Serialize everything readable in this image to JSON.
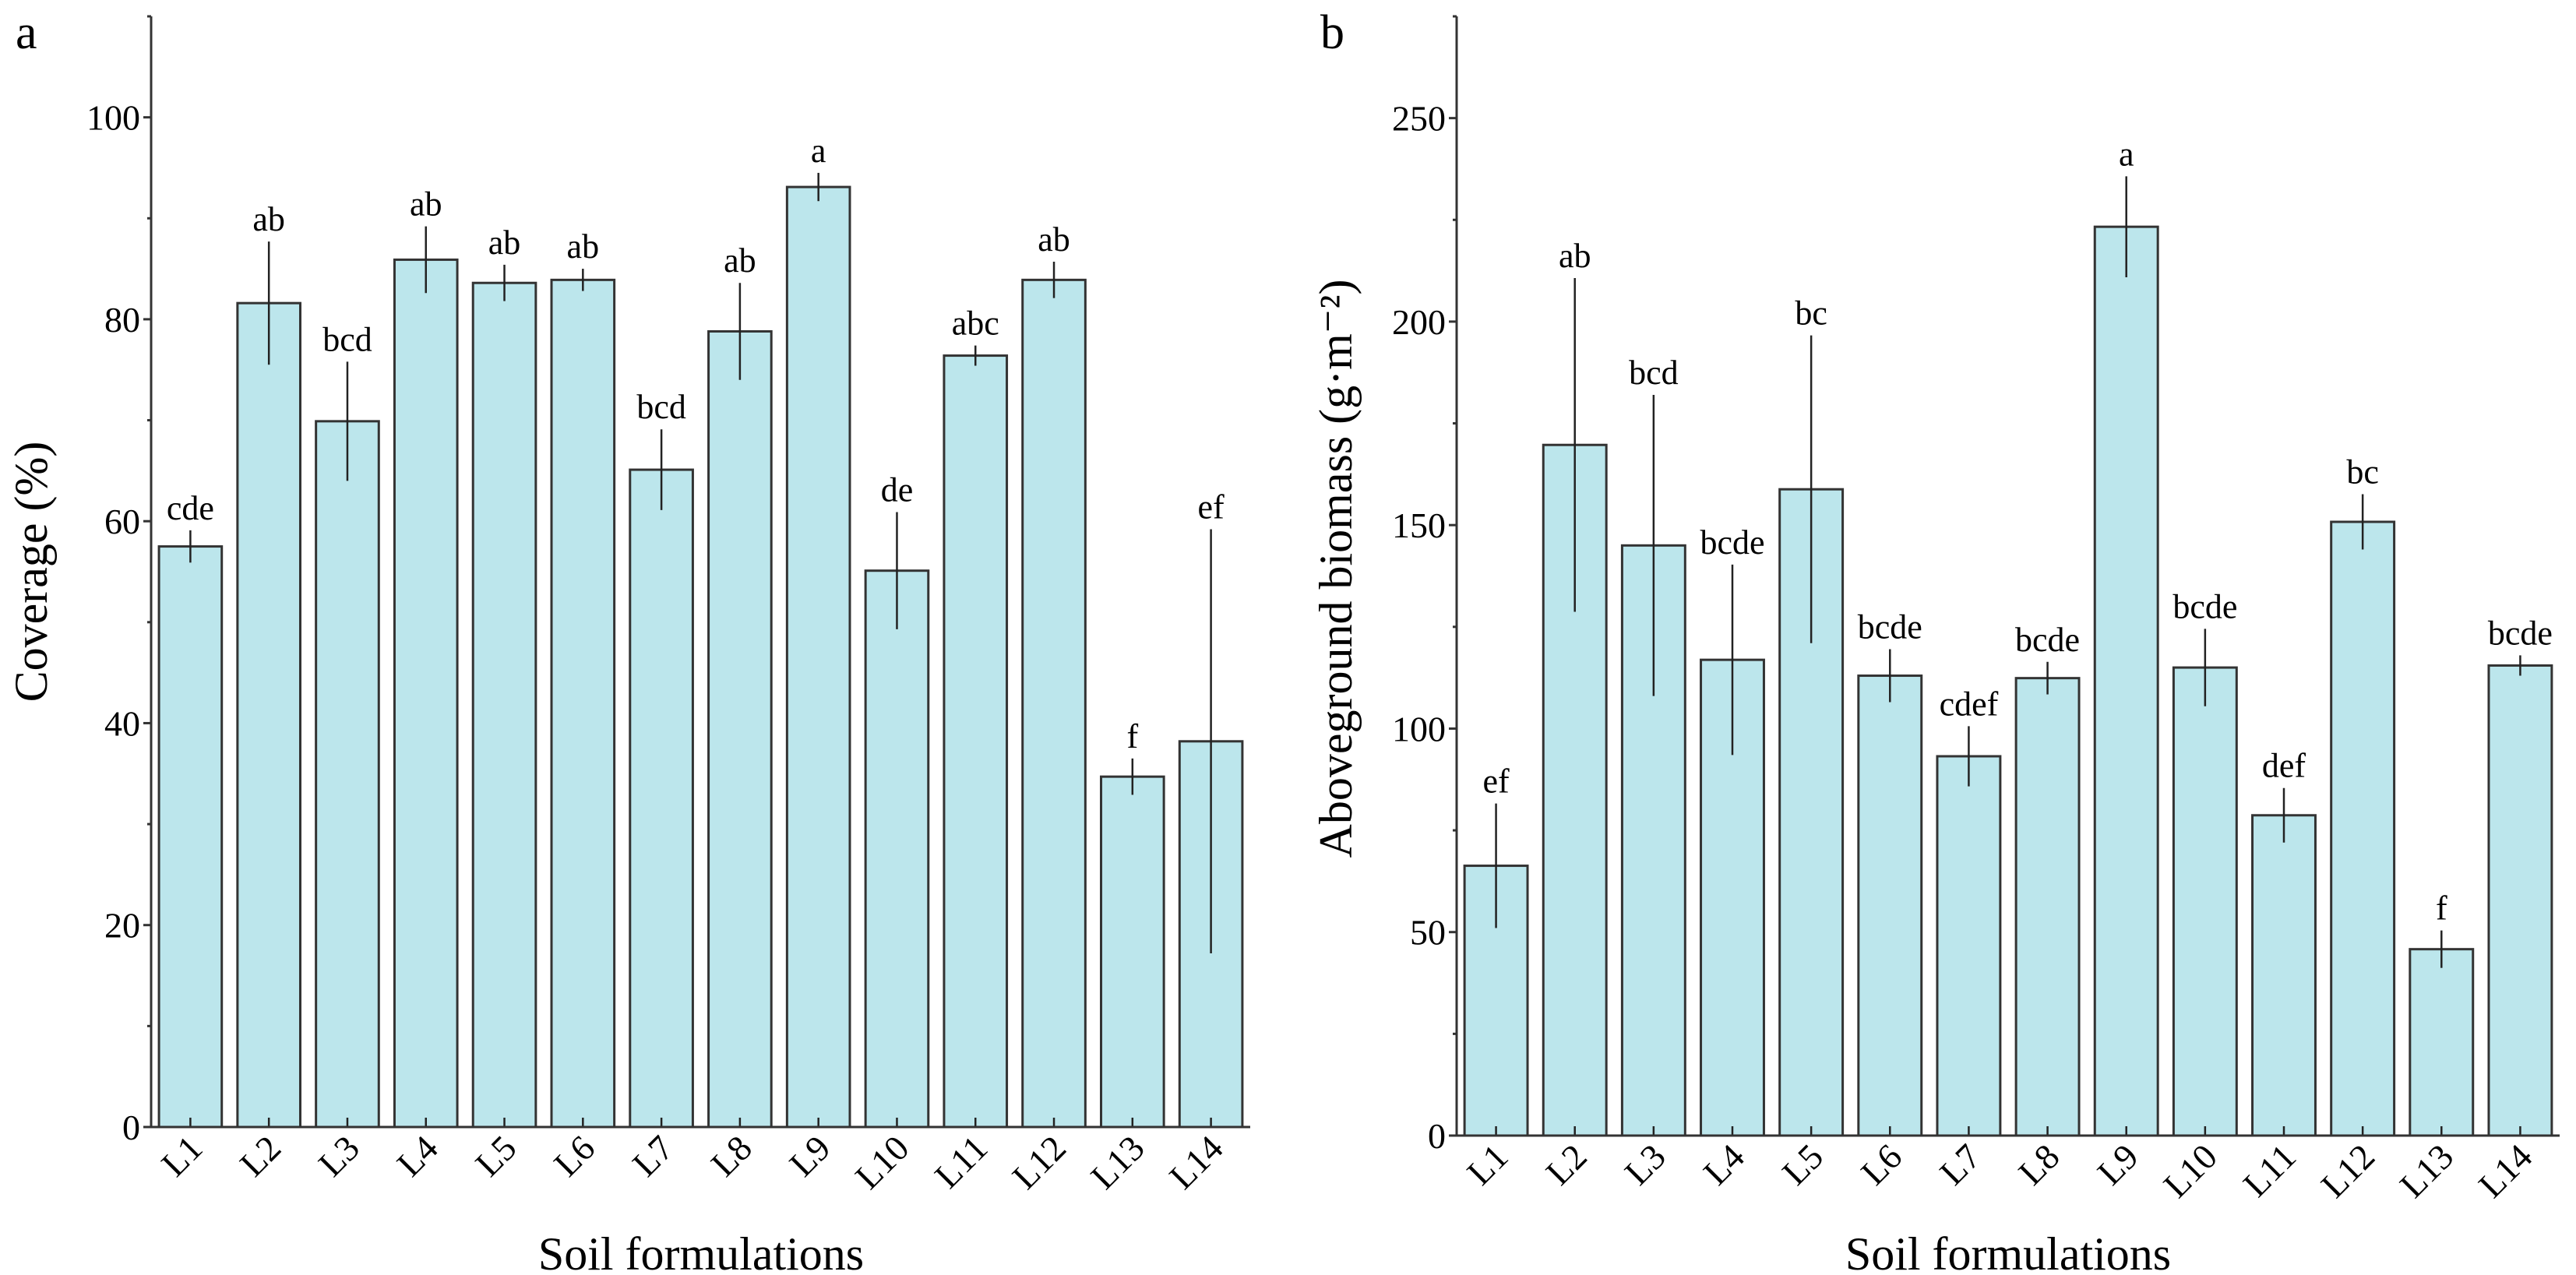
{
  "chart_data": [
    {
      "type": "bar",
      "panel_label": "a",
      "xlabel": "Soil formulations",
      "ylabel": "Coverage (%)",
      "ylim": [
        0,
        110
      ],
      "yticks": [
        0,
        20,
        40,
        60,
        80,
        100
      ],
      "grid": false,
      "bar_color": "#bce6ec",
      "categories": [
        "L1",
        "L2",
        "L3",
        "L4",
        "L5",
        "L6",
        "L7",
        "L8",
        "L9",
        "L10",
        "L11",
        "L12",
        "L13",
        "L14"
      ],
      "values": [
        57.5,
        81.6,
        69.9,
        85.9,
        83.6,
        83.9,
        65.1,
        78.8,
        93.1,
        55.1,
        76.4,
        83.9,
        34.7,
        38.2
      ],
      "errors": [
        1.6,
        6.1,
        5.9,
        3.3,
        1.8,
        1.1,
        4.0,
        4.8,
        1.4,
        5.8,
        1.0,
        1.8,
        1.8,
        21.0
      ],
      "significance": [
        "cde",
        "ab",
        "bcd",
        "ab",
        "ab",
        "ab",
        "bcd",
        "ab",
        "a",
        "de",
        "abc",
        "ab",
        "f",
        "ef"
      ]
    },
    {
      "type": "bar",
      "panel_label": "b",
      "xlabel": "Soil formulations",
      "ylabel": "Aboveground biomass (g·m⁻²)",
      "ylim": [
        0,
        275
      ],
      "yticks": [
        0,
        50,
        100,
        150,
        200,
        250
      ],
      "grid": false,
      "bar_color": "#bce6ec",
      "categories": [
        "L1",
        "L2",
        "L3",
        "L4",
        "L5",
        "L6",
        "L7",
        "L8",
        "L9",
        "L10",
        "L11",
        "L12",
        "L13",
        "L14"
      ],
      "values": [
        66.3,
        169.7,
        145.0,
        116.9,
        158.8,
        113.0,
        93.2,
        112.4,
        223.3,
        115.0,
        78.7,
        150.8,
        45.8,
        115.5
      ],
      "errors": [
        15.3,
        41.0,
        37.0,
        23.4,
        37.8,
        6.5,
        7.4,
        4.0,
        12.4,
        9.5,
        6.7,
        6.8,
        4.6,
        2.5
      ],
      "significance": [
        "ef",
        "ab",
        "bcd",
        "bcde",
        "bc",
        "bcde",
        "cdef",
        "bcde",
        "a",
        "bcde",
        "def",
        "bc",
        "f",
        "bcde"
      ]
    }
  ]
}
